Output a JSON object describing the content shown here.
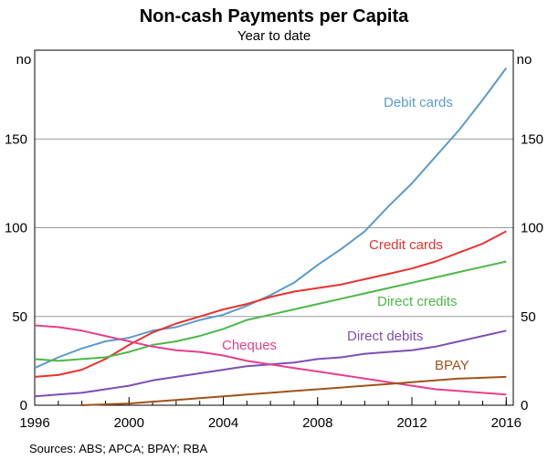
{
  "chart_data": {
    "type": "line",
    "title": "Non-cash Payments per Capita",
    "subtitle": "Year to date",
    "y_unit_left": "no",
    "y_unit_right": "no",
    "ylim": [
      0,
      200
    ],
    "yticks": [
      0,
      50,
      100,
      150
    ],
    "xlim": [
      1996,
      2016.3
    ],
    "xticks": [
      1996,
      2000,
      2004,
      2008,
      2012,
      2016
    ],
    "source": "Sources:   ABS; APCA; BPAY; RBA",
    "series": [
      {
        "name": "Debit cards",
        "color": "#5b9bc8",
        "x": [
          1996,
          1997,
          1998,
          1999,
          2000,
          2001,
          2002,
          2003,
          2004,
          2005,
          2006,
          2007,
          2008,
          2009,
          2010,
          2011,
          2012,
          2013,
          2014,
          2015,
          2016
        ],
        "values": [
          21,
          27,
          32,
          36,
          38,
          42,
          44,
          48,
          51,
          56,
          62,
          69,
          79,
          88,
          98,
          112,
          125,
          140,
          155,
          172,
          190
        ]
      },
      {
        "name": "Credit cards",
        "color": "#e8312f",
        "x": [
          1996,
          1997,
          1998,
          1999,
          2000,
          2001,
          2002,
          2003,
          2004,
          2005,
          2006,
          2007,
          2008,
          2009,
          2010,
          2011,
          2012,
          2013,
          2014,
          2015,
          2016
        ],
        "values": [
          16,
          17,
          20,
          26,
          34,
          41,
          46,
          50,
          54,
          57,
          61,
          64,
          66,
          68,
          71,
          74,
          77,
          81,
          86,
          91,
          98
        ]
      },
      {
        "name": "Direct credits",
        "color": "#4cb748",
        "x": [
          1996,
          1997,
          1998,
          1999,
          2000,
          2001,
          2002,
          2003,
          2004,
          2005,
          2006,
          2007,
          2008,
          2009,
          2010,
          2011,
          2012,
          2013,
          2014,
          2015,
          2016
        ],
        "values": [
          26,
          25,
          26,
          27,
          30,
          34,
          36,
          39,
          43,
          48,
          51,
          54,
          57,
          60,
          63,
          66,
          69,
          72,
          75,
          78,
          81
        ]
      },
      {
        "name": "Direct debits",
        "color": "#7b4fb3",
        "x": [
          1996,
          1997,
          1998,
          1999,
          2000,
          2001,
          2002,
          2003,
          2004,
          2005,
          2006,
          2007,
          2008,
          2009,
          2010,
          2011,
          2012,
          2013,
          2014,
          2015,
          2016
        ],
        "values": [
          5,
          6,
          7,
          9,
          11,
          14,
          16,
          18,
          20,
          22,
          23,
          24,
          26,
          27,
          29,
          30,
          31,
          33,
          36,
          39,
          42
        ]
      },
      {
        "name": "Cheques",
        "color": "#e83e8c",
        "x": [
          1996,
          1997,
          1998,
          1999,
          2000,
          2001,
          2002,
          2003,
          2004,
          2005,
          2006,
          2007,
          2008,
          2009,
          2010,
          2011,
          2012,
          2013,
          2014,
          2015,
          2016
        ],
        "values": [
          45,
          44,
          42,
          39,
          36,
          33,
          31,
          30,
          28,
          25,
          23,
          21,
          19,
          17,
          15,
          13,
          11,
          9,
          8,
          7,
          6
        ]
      },
      {
        "name": "BPAY",
        "color": "#a0521d",
        "x": [
          1998,
          1999,
          2000,
          2001,
          2002,
          2003,
          2004,
          2005,
          2006,
          2007,
          2008,
          2009,
          2010,
          2011,
          2012,
          2013,
          2014,
          2015,
          2016
        ],
        "values": [
          0,
          0.5,
          1,
          2,
          3,
          4,
          5,
          6,
          7,
          8,
          9,
          10,
          11,
          12,
          13,
          14,
          15,
          15.5,
          16
        ]
      }
    ],
    "labels": {
      "debit": "Debit cards",
      "credit": "Credit cards",
      "direct_credits": "Direct credits",
      "direct_debits": "Direct debits",
      "cheques": "Cheques",
      "bpay": "BPAY"
    }
  }
}
